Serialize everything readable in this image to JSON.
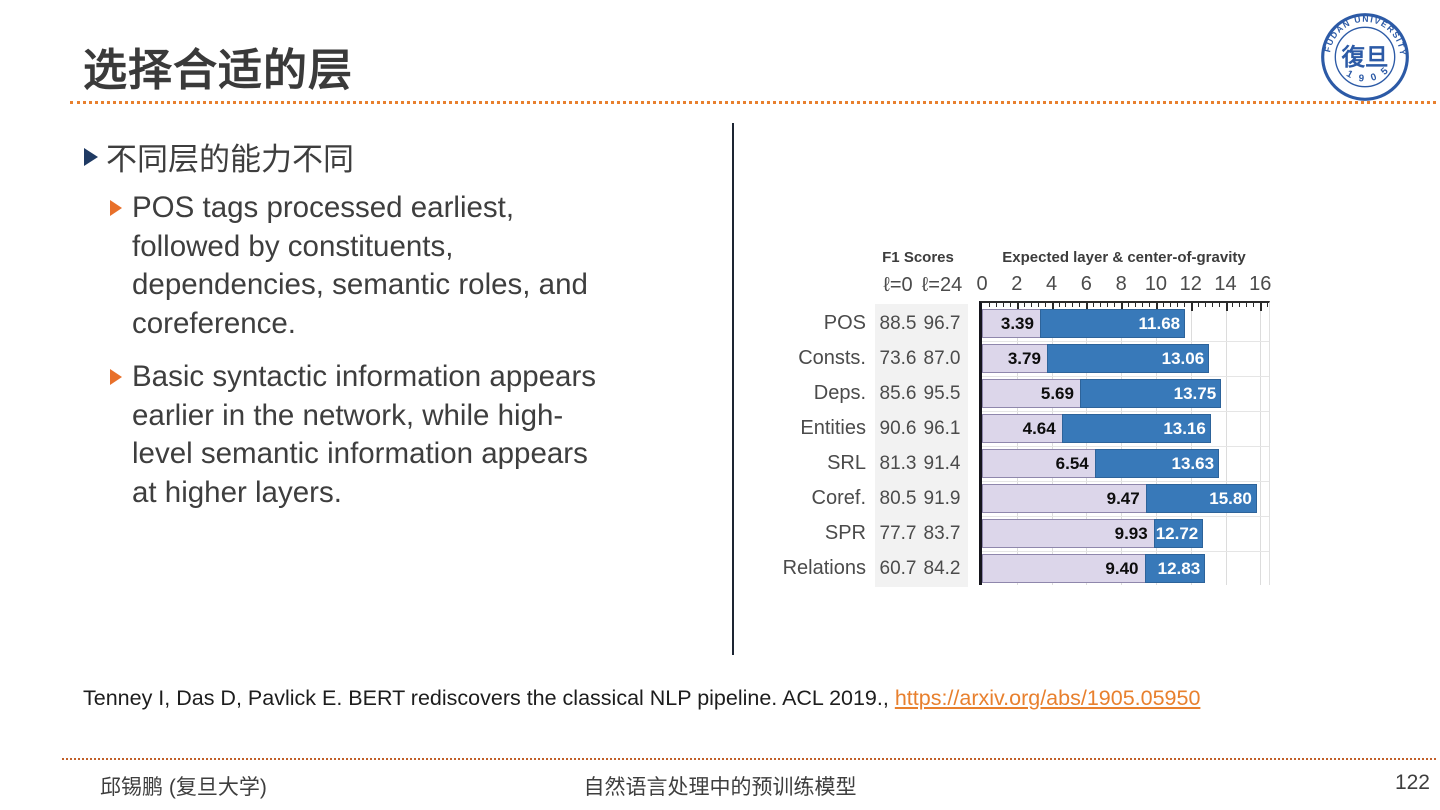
{
  "slide": {
    "title": "选择合适的层",
    "page_number": "122",
    "footer_left": "邱锡鹏 (复旦大学)",
    "footer_center": "自然语言处理中的预训练模型",
    "citation_text": "Tenney I, Das D, Pavlick E. BERT rediscovers the classical NLP pipeline. ACL 2019., ",
    "citation_link": "https://arxiv.org/abs/1905.05950"
  },
  "logo": {
    "ring_text": "FUDAN UNIVERSITY",
    "year": "1 9 0 5",
    "seal_text": "復旦"
  },
  "content": {
    "heading": "不同层的能力不同",
    "bullets": [
      {
        "lines": [
          "POS tags processed earliest,",
          "followed by constituents,",
          "dependencies, semantic roles, and",
          "coreference."
        ]
      },
      {
        "lines": [
          "Basic syntactic information appears",
          "earlier in the network, while high-",
          "level semantic information appears",
          "at higher layers."
        ]
      }
    ]
  },
  "colors": {
    "accent_orange": "#e8802e",
    "bullet_navy": "#1f3a63",
    "bar_blue": "#3879b9",
    "bar_lavender": "#dcd6ea",
    "panel_gray": "#f2f2f2"
  },
  "chart_data": {
    "type": "bar",
    "title_left": "F1 Scores",
    "title_right": "Expected layer & center-of-gravity",
    "col_headers": [
      "ℓ=0",
      "ℓ=24"
    ],
    "categories": [
      "POS",
      "Consts.",
      "Deps.",
      "Entities",
      "SRL",
      "Coref.",
      "SPR",
      "Relations"
    ],
    "f1_l0": [
      88.5,
      73.6,
      85.6,
      90.6,
      81.3,
      80.5,
      77.7,
      60.7
    ],
    "f1_l24": [
      96.7,
      87.0,
      95.5,
      96.1,
      91.4,
      91.9,
      83.7,
      84.2
    ],
    "series": [
      {
        "name": "expected-layer",
        "values": [
          3.39,
          3.79,
          5.69,
          4.64,
          6.54,
          9.47,
          9.93,
          9.4
        ]
      },
      {
        "name": "center-of-gravity",
        "values": [
          11.68,
          13.06,
          13.75,
          13.16,
          13.63,
          15.8,
          12.72,
          12.83
        ]
      }
    ],
    "x_ticks": [
      0,
      2,
      4,
      6,
      8,
      10,
      12,
      14,
      16
    ],
    "xlim": [
      0,
      16.5
    ],
    "grid": true,
    "legend_position": "none"
  }
}
